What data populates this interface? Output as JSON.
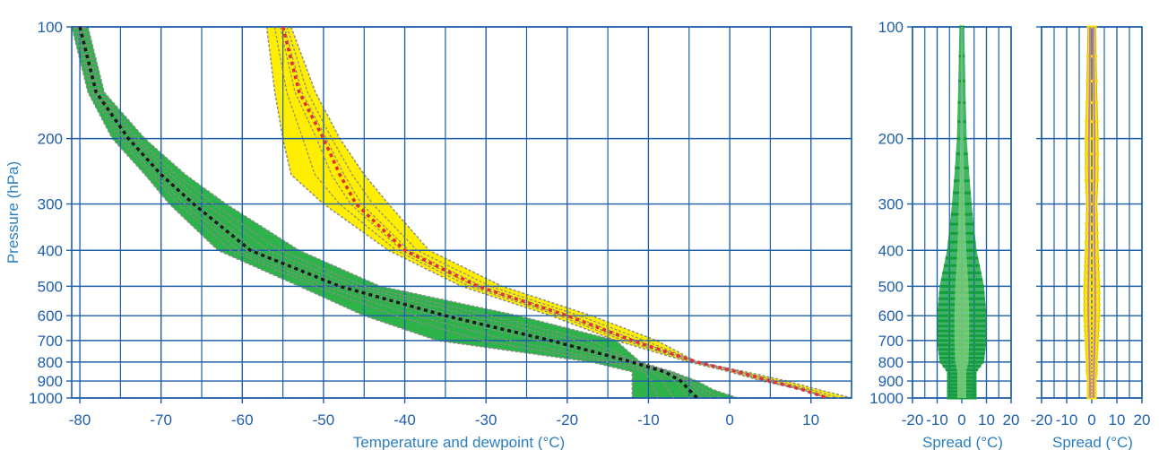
{
  "colors": {
    "axis": "#1f5fa8",
    "label": "#2a7fc0",
    "dewpoint_envelope": "#2eb24a",
    "temperature_envelope": "#ffee00",
    "member_lines": "#8c8c8c",
    "dewpoint_mean": "#1a1a1a",
    "temperature_mean": "#e0303a",
    "temperature_spread_core": "#c97ab8",
    "dewpoint_spread_bars": "#1fa84a",
    "dewpoint_spread_core": "#7fd07f"
  },
  "chart_data": [
    {
      "type": "line",
      "xlabel": "Temperature and dewpoint (°C)",
      "ylabel": "Pressure (hPa)",
      "xlim": [
        -81,
        15
      ],
      "ylim": [
        1000,
        100
      ],
      "y_scale": "log",
      "grid": true,
      "xticks": [
        -80,
        -70,
        -60,
        -50,
        -40,
        -30,
        -20,
        -10,
        0,
        10
      ],
      "yticks": [
        100,
        200,
        300,
        400,
        500,
        600,
        700,
        800,
        900,
        1000
      ],
      "xtick_labels": [
        "-80",
        "-70",
        "-60",
        "-50",
        "-40",
        "-30",
        "-20",
        "-10",
        "0",
        "10"
      ],
      "ytick_labels": [
        "100",
        "200",
        "300",
        "400",
        "500",
        "600",
        "700",
        "800",
        "900",
        "1000"
      ],
      "pressure_levels": [
        100,
        150,
        200,
        250,
        300,
        400,
        500,
        600,
        700,
        800,
        850,
        900,
        950,
        1000
      ],
      "series": [
        {
          "role": "dewpoint-mean",
          "values": [
            -80,
            -78,
            -74,
            -70,
            -66,
            -59,
            -48,
            -35,
            -22,
            -12,
            -8,
            -6,
            -5,
            -4
          ]
        },
        {
          "role": "dewpoint-envelope",
          "values_min": [
            -81,
            -79,
            -76,
            -72,
            -69,
            -63,
            -53,
            -45,
            -36,
            -17,
            -12,
            -12,
            -12,
            -12
          ],
          "values_max": [
            -79,
            -77,
            -72,
            -67,
            -62,
            -53,
            -43,
            -26,
            -14,
            -11,
            -7,
            -4,
            -2,
            1
          ]
        },
        {
          "role": "temperature-mean",
          "values": [
            -55,
            -53,
            -50,
            -48,
            -46,
            -40,
            -31,
            -20,
            -12,
            -4,
            1,
            5,
            9,
            12
          ]
        },
        {
          "role": "temperature-envelope",
          "values_min": [
            -57,
            -56,
            -55,
            -54,
            -50,
            -42,
            -33,
            -22,
            -14,
            -5,
            0,
            4,
            9,
            12
          ],
          "values_max": [
            -54,
            -51,
            -48,
            -45,
            -42,
            -37,
            -28,
            -17,
            -9,
            -4,
            2,
            7,
            11,
            15
          ]
        }
      ]
    },
    {
      "type": "line",
      "xlabel": "Spread (°C)",
      "xlim": [
        -20,
        20
      ],
      "ylim": [
        1000,
        100
      ],
      "y_scale": "log",
      "grid": true,
      "xticks": [
        -20,
        -10,
        0,
        10,
        20
      ],
      "xtick_labels": [
        "-20",
        "-10",
        "0",
        "10",
        "20"
      ],
      "yticks": [
        100,
        200,
        300,
        400,
        500,
        600,
        700,
        800,
        900,
        1000
      ],
      "ytick_labels": [
        "100",
        "200",
        "300",
        "400",
        "500",
        "600",
        "700",
        "800",
        "900",
        "1000"
      ],
      "pressure_levels": [
        100,
        150,
        200,
        250,
        300,
        400,
        500,
        600,
        700,
        800,
        850,
        900,
        950,
        1000
      ],
      "series": [
        {
          "role": "dewpoint-spread",
          "values": [
            1,
            1.5,
            2,
            3,
            4,
            6,
            9,
            10,
            10,
            9,
            6,
            6,
            6,
            6
          ]
        }
      ]
    },
    {
      "type": "line",
      "xlabel": "Spread (°C)",
      "xlim": [
        -20,
        20
      ],
      "ylim": [
        1000,
        100
      ],
      "y_scale": "log",
      "grid": true,
      "xticks": [
        -20,
        -10,
        0,
        10,
        20
      ],
      "xtick_labels": [
        "-20",
        "-10",
        "0",
        "10",
        "20"
      ],
      "series": [
        {
          "role": "temperature-spread",
          "values": [
            1.5,
            2,
            2.5,
            2.5,
            2,
            2.5,
            3,
            3,
            2.5,
            2,
            2,
            1.5,
            1.5,
            1.5
          ]
        }
      ]
    }
  ]
}
